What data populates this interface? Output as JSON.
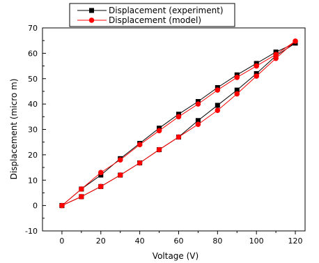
{
  "chart_data": {
    "type": "line",
    "title": "",
    "xlabel": "Voltage (V)",
    "ylabel": "Displacement (micro m)",
    "xlim": [
      -10,
      125
    ],
    "ylim": [
      -10,
      70
    ],
    "xticks": [
      0,
      20,
      40,
      60,
      80,
      100,
      120
    ],
    "yticks": [
      -10,
      0,
      10,
      20,
      30,
      40,
      50,
      60,
      70
    ],
    "grid": false,
    "legend_position": "top-center",
    "series": [
      {
        "name": "Displacement (experiment)",
        "color": "#000000",
        "marker": "square",
        "x": [
          0,
          10,
          20,
          30,
          40,
          50,
          60,
          70,
          80,
          90,
          100,
          110,
          120,
          110,
          100,
          90,
          80,
          70,
          60,
          50,
          40,
          30,
          20,
          10,
          0
        ],
        "y": [
          0,
          3.5,
          7.5,
          12,
          16.8,
          22,
          27,
          33.5,
          39.5,
          45.5,
          52,
          59,
          64,
          60.5,
          56,
          51.5,
          46.5,
          41,
          36,
          30.5,
          24.5,
          18.5,
          12,
          6.5,
          0
        ]
      },
      {
        "name": "Displacement (model)",
        "color": "#ff0000",
        "marker": "circle",
        "x": [
          0,
          10,
          20,
          30,
          40,
          50,
          60,
          70,
          80,
          90,
          100,
          110,
          120,
          110,
          100,
          90,
          80,
          70,
          60,
          50,
          40,
          30,
          20,
          10,
          0
        ],
        "y": [
          0,
          3.5,
          7.5,
          12,
          16.8,
          22,
          27,
          32,
          37.5,
          44,
          51,
          58,
          64.8,
          59.5,
          55,
          50.5,
          45.5,
          40,
          35,
          29.5,
          24,
          18,
          13,
          6.5,
          0
        ]
      }
    ]
  }
}
